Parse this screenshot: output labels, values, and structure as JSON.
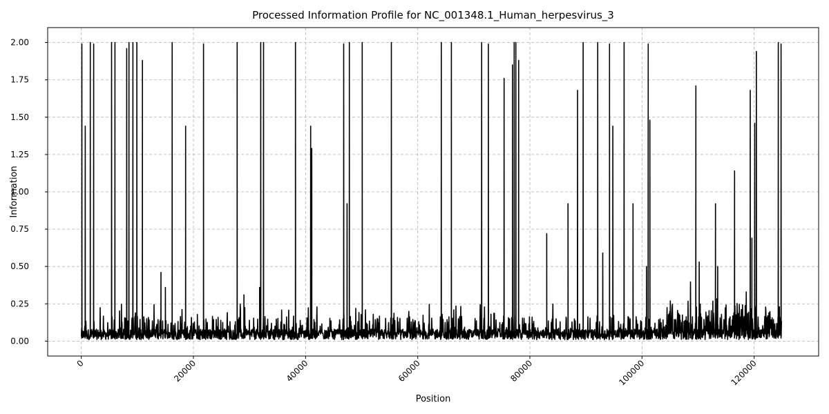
{
  "chart_data": {
    "type": "line",
    "title": "Processed Information Profile for NC_001348.1_Human_herpesvirus_3",
    "xlabel": "Position",
    "ylabel": "Information",
    "xlim": [
      -6000,
      131500
    ],
    "ylim": [
      -0.1,
      2.1
    ],
    "x_ticks": [
      0,
      20000,
      40000,
      60000,
      80000,
      100000,
      120000
    ],
    "x_tick_labels": [
      "0",
      "20000",
      "40000",
      "60000",
      "80000",
      "100000",
      "120000"
    ],
    "y_ticks": [
      0.0,
      0.25,
      0.5,
      0.75,
      1.0,
      1.25,
      1.5,
      1.75,
      2.0
    ],
    "y_tick_labels": [
      "0.00",
      "0.25",
      "0.50",
      "0.75",
      "1.00",
      "1.25",
      "1.50",
      "1.75",
      "2.00"
    ],
    "x_tick_rotation": 45,
    "grid": true,
    "line_color": "#000000",
    "series": [
      {
        "x_range": [
          0,
          124884
        ],
        "baseline": 0.05,
        "peaks": [
          {
            "x": 100,
            "y": 1.99
          },
          {
            "x": 700,
            "y": 1.44
          },
          {
            "x": 1600,
            "y": 2.0
          },
          {
            "x": 2200,
            "y": 1.99
          },
          {
            "x": 5400,
            "y": 2.0
          },
          {
            "x": 6000,
            "y": 2.0
          },
          {
            "x": 8100,
            "y": 1.96
          },
          {
            "x": 8500,
            "y": 2.0
          },
          {
            "x": 9200,
            "y": 2.0
          },
          {
            "x": 9900,
            "y": 2.0
          },
          {
            "x": 10900,
            "y": 1.88
          },
          {
            "x": 14200,
            "y": 0.46
          },
          {
            "x": 15000,
            "y": 0.36
          },
          {
            "x": 16200,
            "y": 2.0
          },
          {
            "x": 18600,
            "y": 1.44
          },
          {
            "x": 21800,
            "y": 1.99
          },
          {
            "x": 27800,
            "y": 2.0
          },
          {
            "x": 29000,
            "y": 0.31
          },
          {
            "x": 31800,
            "y": 0.36
          },
          {
            "x": 32000,
            "y": 2.0
          },
          {
            "x": 32500,
            "y": 2.0
          },
          {
            "x": 38200,
            "y": 2.0
          },
          {
            "x": 40900,
            "y": 1.44
          },
          {
            "x": 41100,
            "y": 1.29
          },
          {
            "x": 46800,
            "y": 1.99
          },
          {
            "x": 47400,
            "y": 0.92
          },
          {
            "x": 47800,
            "y": 2.0
          },
          {
            "x": 50100,
            "y": 2.0
          },
          {
            "x": 55300,
            "y": 2.0
          },
          {
            "x": 64200,
            "y": 2.0
          },
          {
            "x": 66000,
            "y": 2.0
          },
          {
            "x": 71400,
            "y": 2.0
          },
          {
            "x": 72600,
            "y": 1.99
          },
          {
            "x": 75400,
            "y": 1.76
          },
          {
            "x": 76900,
            "y": 1.85
          },
          {
            "x": 77200,
            "y": 2.0
          },
          {
            "x": 77500,
            "y": 2.0
          },
          {
            "x": 78000,
            "y": 1.88
          },
          {
            "x": 83000,
            "y": 0.72
          },
          {
            "x": 86800,
            "y": 0.92
          },
          {
            "x": 88500,
            "y": 1.68
          },
          {
            "x": 89500,
            "y": 2.0
          },
          {
            "x": 92100,
            "y": 2.0
          },
          {
            "x": 93000,
            "y": 0.59
          },
          {
            "x": 94200,
            "y": 1.99
          },
          {
            "x": 94800,
            "y": 1.44
          },
          {
            "x": 96800,
            "y": 2.0
          },
          {
            "x": 98400,
            "y": 0.92
          },
          {
            "x": 100800,
            "y": 0.5
          },
          {
            "x": 101100,
            "y": 1.99
          },
          {
            "x": 101400,
            "y": 1.48
          },
          {
            "x": 109600,
            "y": 1.71
          },
          {
            "x": 110200,
            "y": 0.53
          },
          {
            "x": 113100,
            "y": 0.92
          },
          {
            "x": 113500,
            "y": 0.5
          },
          {
            "x": 116500,
            "y": 1.14
          },
          {
            "x": 119300,
            "y": 1.68
          },
          {
            "x": 119600,
            "y": 0.69
          },
          {
            "x": 120100,
            "y": 1.46
          },
          {
            "x": 120400,
            "y": 1.94
          },
          {
            "x": 124300,
            "y": 2.0
          },
          {
            "x": 124800,
            "y": 1.99
          }
        ]
      }
    ]
  }
}
